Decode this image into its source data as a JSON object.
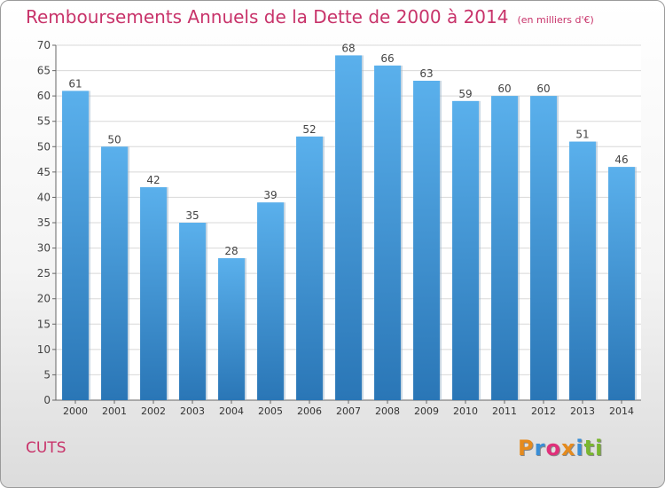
{
  "header": {
    "title": "Remboursements Annuels de la Dette de 2000 à 2014",
    "unit": "(en milliers d'€)"
  },
  "footer": {
    "commune": "CUTS",
    "logo_text": "Proxiti",
    "logo_colors": [
      "#e58b1e",
      "#3a8ed6",
      "#e0307a",
      "#e58b1e",
      "#3a8ed6",
      "#7ab630",
      "#7ab630"
    ]
  },
  "colors": {
    "title": "#c8336a",
    "bar_light": "#5ab0ec",
    "bar_dark": "#2a76b6",
    "grid": "#d8d8d8"
  },
  "chart_data": {
    "type": "bar",
    "title": "Remboursements Annuels de la Dette de 2000 à 2014",
    "categories": [
      "2000",
      "2001",
      "2002",
      "2003",
      "2004",
      "2005",
      "2006",
      "2007",
      "2008",
      "2009",
      "2010",
      "2011",
      "2012",
      "2013",
      "2014"
    ],
    "values": [
      61,
      50,
      42,
      35,
      28,
      39,
      52,
      68,
      66,
      63,
      59,
      60,
      60,
      51,
      46
    ],
    "ylim": [
      0,
      70
    ],
    "yticks": [
      0,
      5,
      10,
      15,
      20,
      25,
      30,
      35,
      40,
      45,
      50,
      55,
      60,
      65,
      70
    ],
    "grid": true,
    "data_labels": true
  }
}
